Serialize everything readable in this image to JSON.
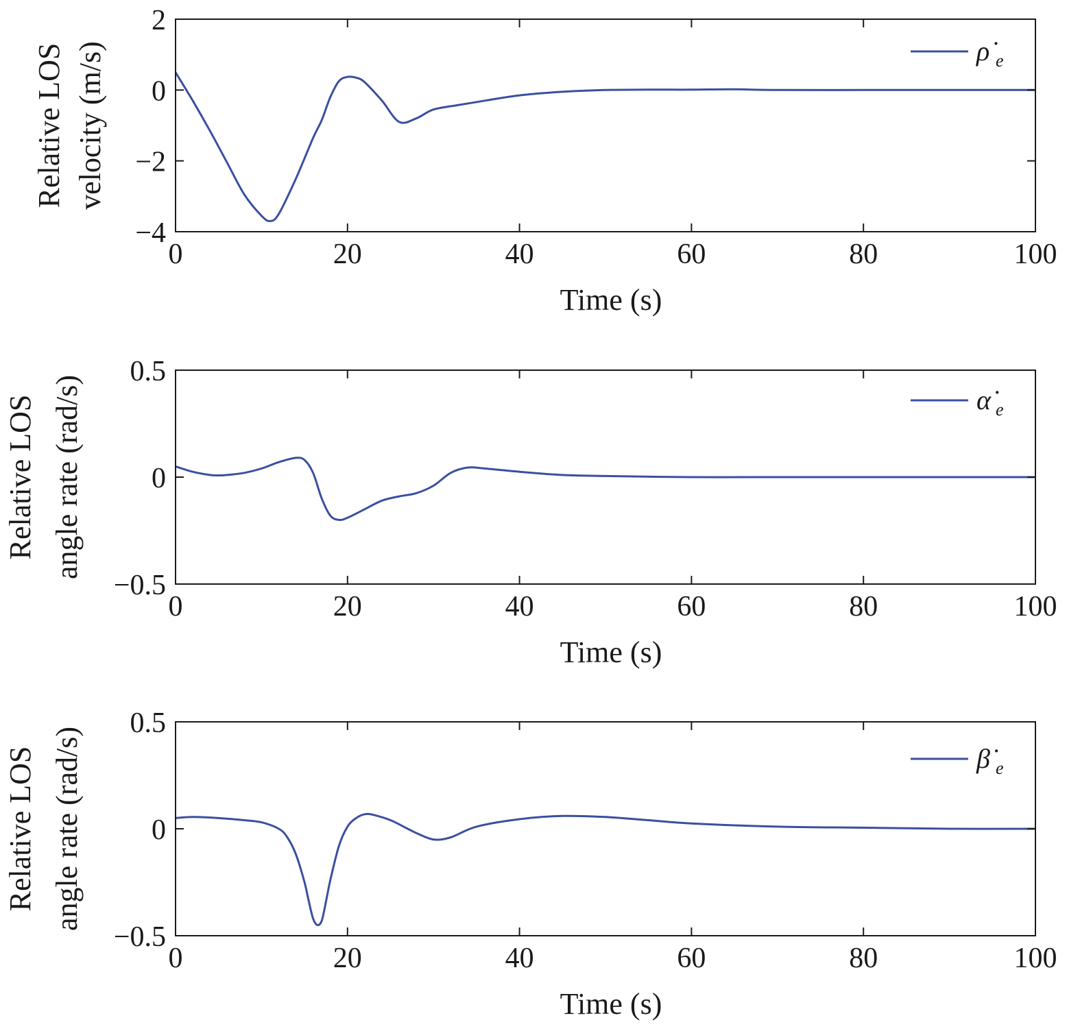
{
  "chart_data": [
    {
      "type": "line",
      "xlabel": "Time (s)",
      "ylabel": [
        "Relative LOS",
        "velocity (m/s)"
      ],
      "xlim": [
        0,
        100
      ],
      "ylim": [
        -4,
        2
      ],
      "xticks": [
        0,
        20,
        40,
        60,
        80,
        100
      ],
      "yticks": [
        -4,
        -2,
        0,
        2
      ],
      "xtick_labels": [
        "0",
        "20",
        "40",
        "60",
        "80",
        "100"
      ],
      "ytick_labels": [
        "−4",
        "−2",
        "0",
        "2"
      ],
      "grid": false,
      "legend_position": "top-right",
      "series": [
        {
          "name": "ρ̇",
          "subscript": "e",
          "color": "#3a4fa0",
          "x": [
            0,
            2,
            4,
            6,
            8,
            10,
            11,
            12,
            14,
            16,
            17,
            18,
            19,
            20,
            21,
            22,
            24,
            26,
            28,
            30,
            33,
            36,
            40,
            45,
            50,
            55,
            60,
            65,
            70,
            80,
            90,
            100
          ],
          "y": [
            0.5,
            -0.3,
            -1.15,
            -2.05,
            -2.95,
            -3.55,
            -3.7,
            -3.5,
            -2.5,
            -1.35,
            -0.85,
            -0.2,
            0.25,
            0.37,
            0.35,
            0.22,
            -0.3,
            -0.9,
            -0.8,
            -0.55,
            -0.42,
            -0.3,
            -0.15,
            -0.05,
            0.0,
            0.01,
            0.01,
            0.02,
            0.0,
            0.0,
            0.0,
            0.0
          ]
        }
      ]
    },
    {
      "type": "line",
      "xlabel": "Time (s)",
      "ylabel": [
        "Relative LOS",
        "angle rate (rad/s)"
      ],
      "xlim": [
        0,
        100
      ],
      "ylim": [
        -0.5,
        0.5
      ],
      "xticks": [
        0,
        20,
        40,
        60,
        80,
        100
      ],
      "yticks": [
        -0.5,
        0,
        0.5
      ],
      "xtick_labels": [
        "0",
        "20",
        "40",
        "60",
        "80",
        "100"
      ],
      "ytick_labels": [
        "−0.5",
        "0",
        "0.5"
      ],
      "grid": false,
      "legend_position": "top-right",
      "series": [
        {
          "name": "α̇",
          "subscript": "e",
          "color": "#3a4fa0",
          "x": [
            0,
            2,
            4,
            5,
            6,
            8,
            10,
            12,
            14,
            15,
            16,
            17,
            18,
            19,
            20,
            22,
            24,
            26,
            28,
            30,
            32,
            34,
            36,
            40,
            45,
            50,
            60,
            70,
            80,
            90,
            100
          ],
          "y": [
            0.05,
            0.025,
            0.01,
            0.008,
            0.01,
            0.02,
            0.04,
            0.07,
            0.09,
            0.08,
            0.02,
            -0.1,
            -0.18,
            -0.2,
            -0.19,
            -0.15,
            -0.11,
            -0.09,
            -0.075,
            -0.04,
            0.02,
            0.045,
            0.04,
            0.025,
            0.01,
            0.005,
            0.0,
            0.0,
            0.0,
            0.0,
            0.0
          ]
        }
      ]
    },
    {
      "type": "line",
      "xlabel": "Time (s)",
      "ylabel": [
        "Relative LOS",
        "angle rate (rad/s)"
      ],
      "xlim": [
        0,
        100
      ],
      "ylim": [
        -0.5,
        0.5
      ],
      "xticks": [
        0,
        20,
        40,
        60,
        80,
        100
      ],
      "yticks": [
        -0.5,
        0,
        0.5
      ],
      "xtick_labels": [
        "0",
        "20",
        "40",
        "60",
        "80",
        "100"
      ],
      "ytick_labels": [
        "−0.5",
        "0",
        "0.5"
      ],
      "grid": false,
      "legend_position": "top-right",
      "series": [
        {
          "name": "β̇",
          "subscript": "e",
          "color": "#3a4fa0",
          "x": [
            0,
            2,
            5,
            8,
            10,
            12,
            13,
            14,
            15,
            15.5,
            16,
            16.5,
            17,
            17.5,
            18,
            19,
            20,
            21,
            22,
            23,
            25,
            27,
            28,
            30,
            32,
            35,
            40,
            45,
            50,
            55,
            60,
            70,
            80,
            90,
            100
          ],
          "y": [
            0.05,
            0.055,
            0.05,
            0.04,
            0.03,
            0.0,
            -0.04,
            -0.12,
            -0.25,
            -0.34,
            -0.42,
            -0.45,
            -0.43,
            -0.34,
            -0.24,
            -0.08,
            0.01,
            0.05,
            0.068,
            0.065,
            0.04,
            0.0,
            -0.02,
            -0.05,
            -0.04,
            0.01,
            0.045,
            0.06,
            0.055,
            0.04,
            0.025,
            0.01,
            0.005,
            0.0,
            0.0
          ]
        }
      ]
    }
  ]
}
